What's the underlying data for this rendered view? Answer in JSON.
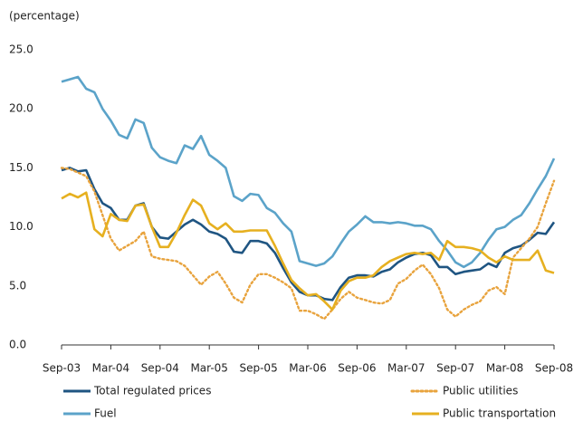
{
  "chart_data": {
    "type": "line",
    "y_label": "(percentage)",
    "categories": [
      "Sep-03",
      null,
      null,
      null,
      null,
      null,
      "Mar-04",
      null,
      null,
      null,
      null,
      null,
      "Sep-04",
      null,
      null,
      null,
      null,
      null,
      "Mar-05",
      null,
      null,
      null,
      null,
      null,
      "Sep-05",
      null,
      null,
      null,
      null,
      null,
      "Mar-06",
      null,
      null,
      null,
      null,
      null,
      "Sep-06",
      null,
      null,
      null,
      null,
      null,
      "Mar-07",
      null,
      null,
      null,
      null,
      null,
      "Sep-07",
      null,
      null,
      null,
      null,
      null,
      "Mar-08",
      null,
      null,
      null,
      null,
      null,
      "Sep-08"
    ],
    "ylim": [
      0,
      25
    ],
    "yticks": [
      {
        "value": 0,
        "label": "0.0"
      },
      {
        "value": 5,
        "label": "5.0"
      },
      {
        "value": 10,
        "label": "10.0"
      },
      {
        "value": 15,
        "label": "15.0"
      },
      {
        "value": 20,
        "label": "20.0"
      },
      {
        "value": 25,
        "label": "25.0"
      }
    ],
    "series": [
      {
        "name": "Total regulated prices",
        "color": "#1f5582",
        "style": "solid",
        "values": [
          14.8,
          15.0,
          14.7,
          14.8,
          13.2,
          12.0,
          11.6,
          10.6,
          10.6,
          11.8,
          12.0,
          10.0,
          9.1,
          9.0,
          9.6,
          10.2,
          10.6,
          10.2,
          9.6,
          9.4,
          9.0,
          7.9,
          7.8,
          8.8,
          8.8,
          8.6,
          7.8,
          6.5,
          5.3,
          4.5,
          4.2,
          4.2,
          3.9,
          3.8,
          4.9,
          5.7,
          5.9,
          5.9,
          5.8,
          6.2,
          6.4,
          7.0,
          7.4,
          7.7,
          7.8,
          7.6,
          6.6,
          6.6,
          6.0,
          6.2,
          6.3,
          6.4,
          6.9,
          6.6,
          7.8,
          8.2,
          8.4,
          8.9,
          9.5,
          9.4,
          10.4
        ]
      },
      {
        "name": "Public utilities",
        "color": "#e8a33d",
        "style": "dotted",
        "values": [
          15.0,
          14.9,
          14.6,
          14.3,
          13.0,
          11.0,
          9.0,
          8.0,
          8.4,
          8.8,
          9.6,
          7.5,
          7.3,
          7.2,
          7.1,
          6.7,
          5.9,
          5.1,
          5.8,
          6.2,
          5.2,
          4.0,
          3.6,
          5.1,
          6.0,
          6.0,
          5.7,
          5.3,
          4.8,
          2.9,
          2.9,
          2.6,
          2.2,
          3.0,
          3.9,
          4.5,
          4.0,
          3.8,
          3.6,
          3.5,
          3.8,
          5.2,
          5.6,
          6.3,
          6.8,
          6.0,
          4.8,
          3.0,
          2.4,
          3.0,
          3.4,
          3.7,
          4.6,
          4.9,
          4.3,
          7.4,
          8.2,
          9.0,
          10.0,
          12.0,
          13.9
        ]
      },
      {
        "name": "Fuel",
        "color": "#5ba3c9",
        "style": "solid",
        "values": [
          22.3,
          22.5,
          22.7,
          21.7,
          21.4,
          20.0,
          19.0,
          17.8,
          17.5,
          19.1,
          18.8,
          16.7,
          15.9,
          15.6,
          15.4,
          16.9,
          16.6,
          17.7,
          16.1,
          15.6,
          15.0,
          12.6,
          12.2,
          12.8,
          12.7,
          11.6,
          11.2,
          10.3,
          9.6,
          7.1,
          6.9,
          6.7,
          6.9,
          7.5,
          8.6,
          9.6,
          10.2,
          10.9,
          10.4,
          10.4,
          10.3,
          10.4,
          10.3,
          10.1,
          10.1,
          9.8,
          8.8,
          8.0,
          7.0,
          6.6,
          7.0,
          7.8,
          8.9,
          9.8,
          10.0,
          10.6,
          11.0,
          12.0,
          13.2,
          14.3,
          15.8
        ]
      },
      {
        "name": "Public transportation",
        "color": "#e6b020",
        "style": "solid",
        "values": [
          12.4,
          12.8,
          12.5,
          12.9,
          9.8,
          9.2,
          11.1,
          10.6,
          10.5,
          11.8,
          11.9,
          10.0,
          8.3,
          8.3,
          9.5,
          11.0,
          12.3,
          11.8,
          10.3,
          9.8,
          10.3,
          9.6,
          9.6,
          9.7,
          9.7,
          9.7,
          8.4,
          6.9,
          5.5,
          4.8,
          4.2,
          4.3,
          3.7,
          3.0,
          4.6,
          5.4,
          5.7,
          5.7,
          5.9,
          6.6,
          7.1,
          7.4,
          7.7,
          7.8,
          7.7,
          7.8,
          7.2,
          8.8,
          8.3,
          8.3,
          8.2,
          8.0,
          7.4,
          7.0,
          7.5,
          7.2,
          7.2,
          7.2,
          8.0,
          6.3,
          6.1
        ]
      }
    ]
  }
}
